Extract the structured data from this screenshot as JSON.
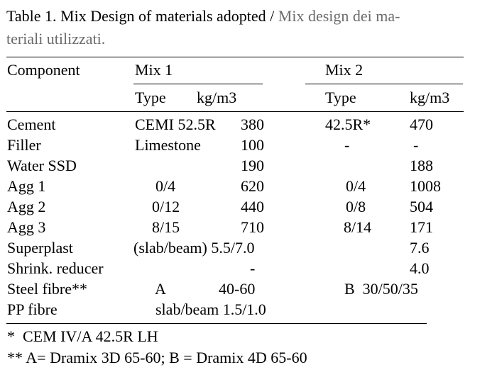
{
  "caption": {
    "main": "Table 1. Mix Design of materials adopted /",
    "italian_line1": "Mix design dei ma-",
    "italian_line2": "teriali utilizzati."
  },
  "headers": {
    "component": "Component",
    "mix1": "Mix 1",
    "mix2": "Mix 2",
    "mix1_type": "Type",
    "mix1_unit": "kg/m3",
    "mix2_type": "Type",
    "mix2_unit": "kg/m3"
  },
  "rows": [
    {
      "component": "Cement",
      "m1_type": "CEMI 52.5R",
      "m1_kg": "380",
      "m2_type": "42.5R*",
      "m2_kg": "470"
    },
    {
      "component": "Filler",
      "m1_type": "Limestone",
      "m1_kg": "100",
      "m2_type": "-",
      "m2_kg": "-"
    },
    {
      "component": "Water SSD",
      "m1_type": "",
      "m1_kg": "190",
      "m2_type": "",
      "m2_kg": "188"
    },
    {
      "component": "Agg 1",
      "m1_type": "0/4",
      "m1_kg": "620",
      "m2_type": "0/4",
      "m2_kg": "1008"
    },
    {
      "component": "Agg 2",
      "m1_type": "0/12",
      "m1_kg": "440",
      "m2_type": "0/8",
      "m2_kg": "504"
    },
    {
      "component": "Agg 3",
      "m1_type": "8/15",
      "m1_kg": "710",
      "m2_type": "8/14",
      "m2_kg": "171"
    },
    {
      "component": "Superplast",
      "m1_type": "(slab/beam) 5.5/7.0",
      "m1_kg": "",
      "m2_type": "",
      "m2_kg": "7.6"
    },
    {
      "component": "Shrink. reducer",
      "m1_type": "",
      "m1_kg": "-",
      "m2_type": "",
      "m2_kg": "4.0"
    },
    {
      "component": "Steel fibre**",
      "m1_type": "A",
      "m1_kg": "40-60",
      "m2_type": "B  30/50/35",
      "m2_kg": ""
    },
    {
      "component": "PP fibre",
      "m1_type": "slab/beam 1.5/1.0",
      "m1_kg": "",
      "m2_type": "",
      "m2_kg": ""
    }
  ],
  "notes": [
    "*  CEM IV/A 42.5R LH",
    "** A= Dramix 3D 65-60; B = Dramix 4D 65-60"
  ]
}
